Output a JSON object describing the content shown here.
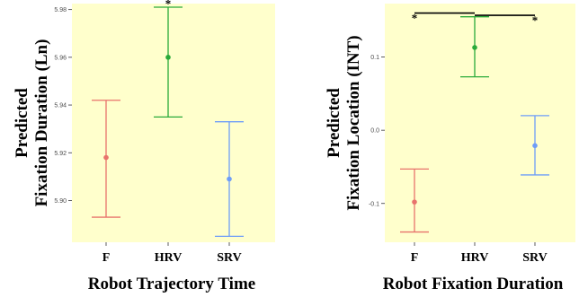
{
  "chart_data": [
    {
      "type": "errorbar",
      "xlabel": "Robot Trajectory Time",
      "ylabel_lines": [
        "Predicted",
        "Fixation Duration (Ln)"
      ],
      "categories": [
        "F",
        "HRV",
        "SRV"
      ],
      "colors": [
        "#E8736C",
        "#2AAA3A",
        "#6E9DF8"
      ],
      "points": [
        {
          "category": "F",
          "estimate": 5.918,
          "lower": 5.893,
          "upper": 5.942
        },
        {
          "category": "HRV",
          "estimate": 5.96,
          "lower": 5.935,
          "upper": 5.981
        },
        {
          "category": "SRV",
          "estimate": 5.909,
          "lower": 5.885,
          "upper": 5.933
        }
      ],
      "ylim": [
        5.8825,
        5.9825
      ],
      "yticks": [
        5.9,
        5.92,
        5.94,
        5.96,
        5.98
      ],
      "ytick_labels": [
        "5.90",
        "5.92",
        "5.94",
        "5.96",
        "5.98"
      ],
      "significance": [
        {
          "from": "HRV",
          "to": "SRV",
          "y": 5.9845,
          "label": "*",
          "label_at": "HRV"
        }
      ],
      "background": "#FFFFCC"
    },
    {
      "type": "errorbar",
      "xlabel": "Robot Fixation Duration",
      "ylabel_lines": [
        "Predicted",
        "Fixation Location (INT)"
      ],
      "categories": [
        "F",
        "HRV",
        "SRV"
      ],
      "colors": [
        "#E8736C",
        "#2AAA3A",
        "#6E9DF8"
      ],
      "points": [
        {
          "category": "F",
          "estimate": -0.098,
          "lower": -0.139,
          "upper": -0.053
        },
        {
          "category": "HRV",
          "estimate": 0.113,
          "lower": 0.073,
          "upper": 0.155
        },
        {
          "category": "SRV",
          "estimate": -0.021,
          "lower": -0.061,
          "upper": 0.02
        }
      ],
      "ylim": [
        -0.153,
        0.173
      ],
      "yticks": [
        -0.1,
        0.0,
        0.1
      ],
      "ytick_labels": [
        "-0.1",
        "0.0",
        "0.1"
      ],
      "significance": [
        {
          "from": "F",
          "to": "HRV",
          "y": 0.16,
          "label": "*",
          "label_at": "F"
        },
        {
          "from": "HRV",
          "to": "SRV",
          "y": 0.157,
          "label": "*",
          "label_at": "SRV"
        }
      ],
      "background": "#FFFFCC"
    }
  ]
}
